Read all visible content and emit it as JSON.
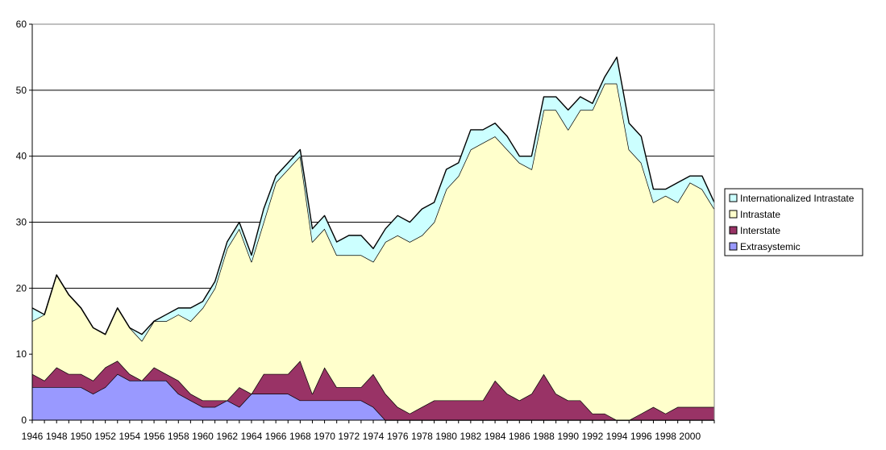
{
  "chart_data": {
    "type": "area",
    "stacked": true,
    "title": "",
    "xlabel": "",
    "ylabel": "",
    "ylim": [
      0,
      60
    ],
    "yticks": [
      0,
      10,
      20,
      30,
      40,
      50,
      60
    ],
    "xlim": [
      1946,
      2002
    ],
    "xtick_labels": [
      "1946",
      "1948",
      "1950",
      "1952",
      "1954",
      "1956",
      "1958",
      "1960",
      "1962",
      "1964",
      "1966",
      "1968",
      "1970",
      "1972",
      "1974",
      "1976",
      "1978",
      "1980",
      "1982",
      "1984",
      "1986",
      "1988",
      "1990",
      "1992",
      "1994",
      "1996",
      "1998",
      "2000"
    ],
    "grid": "horizontal",
    "legend_position": "right",
    "x": [
      1946,
      1947,
      1948,
      1949,
      1950,
      1951,
      1952,
      1953,
      1954,
      1955,
      1956,
      1957,
      1958,
      1959,
      1960,
      1961,
      1962,
      1963,
      1964,
      1965,
      1966,
      1967,
      1968,
      1969,
      1970,
      1971,
      1972,
      1973,
      1974,
      1975,
      1976,
      1977,
      1978,
      1979,
      1980,
      1981,
      1982,
      1983,
      1984,
      1985,
      1986,
      1987,
      1988,
      1989,
      1990,
      1991,
      1992,
      1993,
      1994,
      1995,
      1996,
      1997,
      1998,
      1999,
      2000,
      2001,
      2002
    ],
    "series": [
      {
        "name": "Extrasystemic",
        "color": "#9999ff",
        "values": [
          5,
          5,
          5,
          5,
          5,
          4,
          5,
          7,
          6,
          6,
          6,
          6,
          4,
          3,
          2,
          2,
          3,
          2,
          4,
          4,
          4,
          4,
          3,
          3,
          3,
          3,
          3,
          3,
          2,
          0,
          0,
          0,
          0,
          0,
          0,
          0,
          0,
          0,
          0,
          0,
          0,
          0,
          0,
          0,
          0,
          0,
          0,
          0,
          0,
          0,
          0,
          0,
          0,
          0,
          0,
          0,
          0
        ]
      },
      {
        "name": "Interstate",
        "color": "#993366",
        "values": [
          2,
          1,
          3,
          2,
          2,
          2,
          3,
          2,
          1,
          0,
          2,
          1,
          2,
          1,
          1,
          1,
          0,
          3,
          0,
          3,
          3,
          3,
          6,
          1,
          5,
          2,
          2,
          2,
          5,
          4,
          2,
          1,
          2,
          3,
          3,
          3,
          3,
          3,
          6,
          4,
          3,
          4,
          7,
          4,
          3,
          3,
          1,
          1,
          0,
          0,
          1,
          2,
          1,
          2,
          2,
          2,
          2
        ]
      },
      {
        "name": "Intrastate",
        "color": "#ffffcc",
        "values": [
          8,
          10,
          14,
          12,
          10,
          8,
          5,
          8,
          7,
          6,
          7,
          8,
          10,
          11,
          14,
          17,
          23,
          24,
          20,
          23,
          29,
          31,
          31,
          23,
          21,
          20,
          20,
          20,
          17,
          23,
          26,
          26,
          26,
          27,
          32,
          34,
          38,
          39,
          37,
          37,
          36,
          34,
          40,
          43,
          41,
          44,
          46,
          50,
          51,
          41,
          38,
          31,
          33,
          31,
          34,
          33,
          30
        ]
      },
      {
        "name": "Internationalized Intrastate",
        "color": "#ccffff",
        "values": [
          2,
          0,
          0,
          0,
          0,
          0,
          0,
          0,
          0,
          1,
          0,
          1,
          1,
          2,
          1,
          1,
          1,
          1,
          1,
          2,
          1,
          1,
          1,
          2,
          2,
          2,
          3,
          3,
          2,
          2,
          3,
          3,
          4,
          3,
          3,
          2,
          3,
          2,
          2,
          2,
          1,
          2,
          2,
          2,
          3,
          2,
          1,
          1,
          4,
          4,
          4,
          2,
          1,
          3,
          1,
          2,
          1
        ]
      }
    ]
  }
}
